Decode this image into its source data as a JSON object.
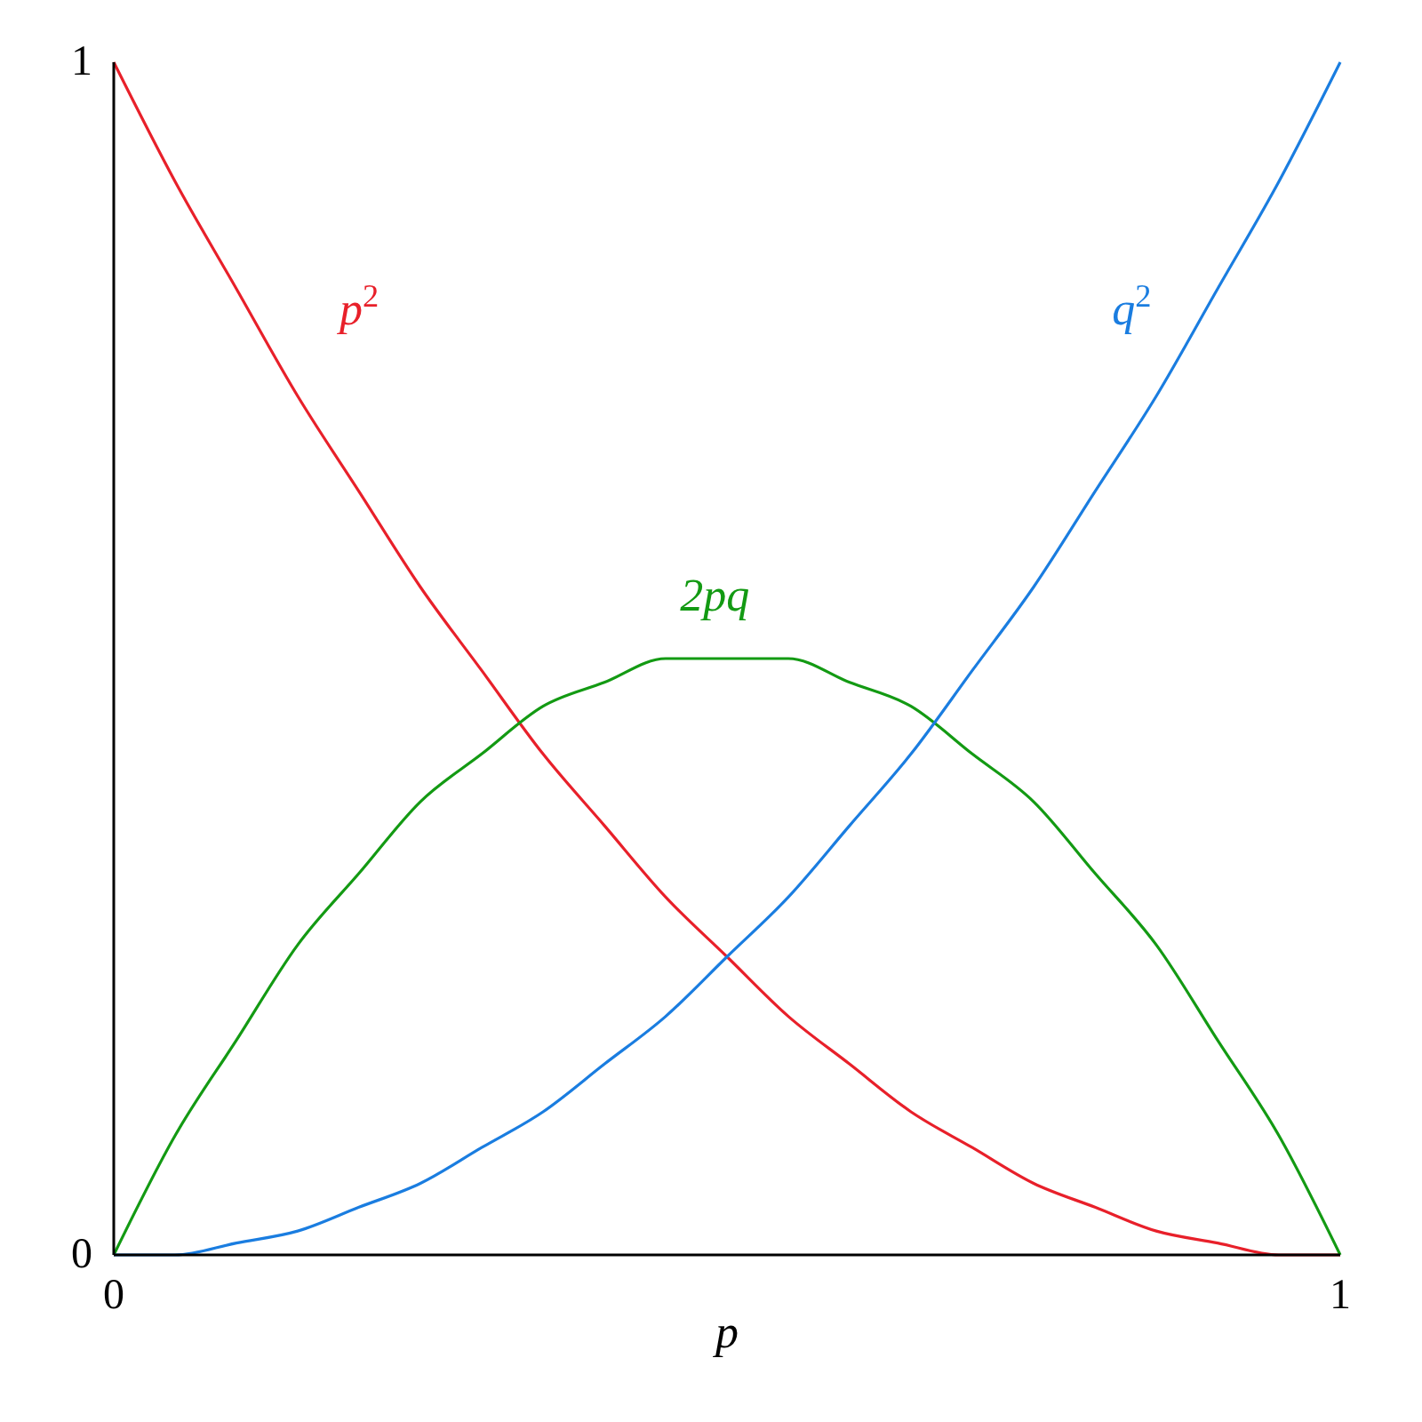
{
  "chart_data": {
    "type": "line",
    "xlabel": "p",
    "x": [
      0,
      0.05,
      0.1,
      0.15,
      0.2,
      0.25,
      0.3,
      0.35,
      0.4,
      0.45,
      0.5,
      0.55,
      0.6,
      0.65,
      0.7,
      0.75,
      0.8,
      0.85,
      0.9,
      0.95,
      1
    ],
    "xlim": [
      0,
      1
    ],
    "ylim": [
      0,
      1
    ],
    "xticks": [
      0,
      1
    ],
    "yticks": [
      0,
      1
    ],
    "grid": false,
    "series": [
      {
        "name": "p$^{2}$",
        "color": "#e8202a",
        "values": [
          1,
          0.9,
          0.81,
          0.72,
          0.64,
          0.56,
          0.49,
          0.42,
          0.36,
          0.3,
          0.25,
          0.2,
          0.16,
          0.12,
          0.09,
          0.06,
          0.04,
          0.02,
          0.01,
          0,
          0
        ]
      },
      {
        "name": "2pq",
        "color": "#139a13",
        "values": [
          0,
          0.1,
          0.18,
          0.26,
          0.32,
          0.38,
          0.42,
          0.46,
          0.48,
          0.5,
          0.5,
          0.5,
          0.48,
          0.46,
          0.42,
          0.38,
          0.32,
          0.26,
          0.18,
          0.1,
          0
        ]
      },
      {
        "name": "q$^{2}$",
        "color": "#1a7de0",
        "values": [
          0,
          0,
          0.01,
          0.02,
          0.04,
          0.06,
          0.09,
          0.12,
          0.16,
          0.2,
          0.25,
          0.3,
          0.36,
          0.42,
          0.49,
          0.56,
          0.64,
          0.72,
          0.81,
          0.9,
          1
        ]
      }
    ]
  }
}
